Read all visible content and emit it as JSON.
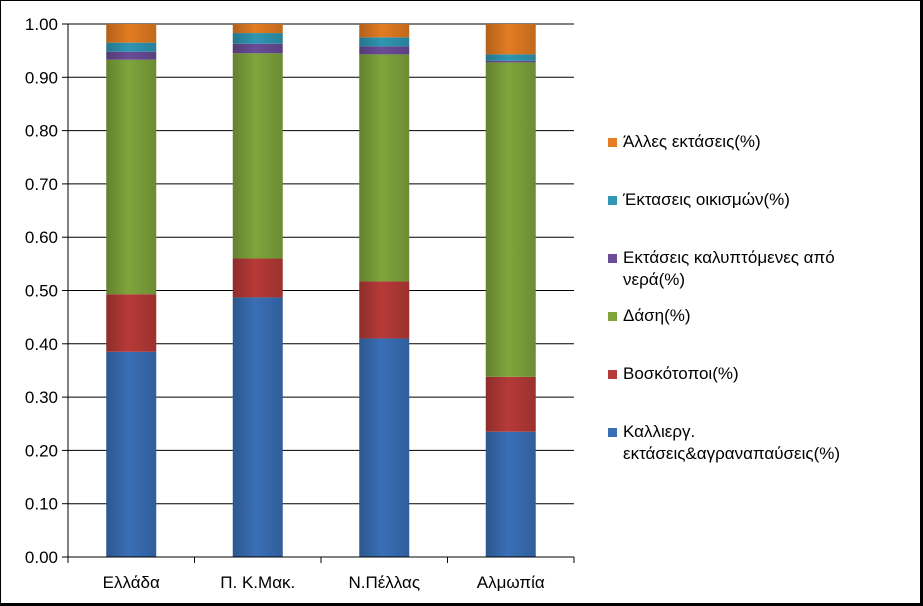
{
  "chart_data": {
    "type": "bar",
    "stacked": true,
    "categories": [
      "Ελλάδα",
      "Π. Κ.Μακ.",
      "Ν.Πέλλας",
      "Αλμωπία"
    ],
    "series": [
      {
        "name": "Καλλιεργ. εκτάσεις&αγραναπαύσεις(%)",
        "legend_lines": [
          "Καλλιεργ.",
          "εκτάσεις&αγραναπαύσεις(%)"
        ],
        "color": "#3A6FB6",
        "values": [
          0.385,
          0.487,
          0.41,
          0.235
        ]
      },
      {
        "name": "Βοσκότοποι(%)",
        "legend_lines": [
          "Βοσκότοποι(%)"
        ],
        "color": "#B63A37",
        "values": [
          0.108,
          0.073,
          0.107,
          0.103
        ]
      },
      {
        "name": "Δάση(%)",
        "legend_lines": [
          "Δάση(%)"
        ],
        "color": "#7FA53C",
        "values": [
          0.44,
          0.385,
          0.426,
          0.59
        ]
      },
      {
        "name": "Εκτάσεις καλυπτόμενες από νερά(%)",
        "legend_lines": [
          "Εκτάσεις καλυπτόμενες από",
          "νερά(%)"
        ],
        "color": "#6A4C97",
        "values": [
          0.015,
          0.018,
          0.015,
          0.003
        ]
      },
      {
        "name": "Έκτασεις οικισμών(%)",
        "legend_lines": [
          "Έκτασεις οικισμών(%)"
        ],
        "color": "#2F96B3",
        "values": [
          0.017,
          0.02,
          0.017,
          0.012
        ]
      },
      {
        "name": "Άλλες εκτάσεις(%)",
        "legend_lines": [
          "Άλλες εκτάσεις(%)"
        ],
        "color": "#E37C22",
        "values": [
          0.035,
          0.017,
          0.025,
          0.057
        ]
      }
    ],
    "ylim": [
      0,
      1
    ],
    "yticks": [
      "0.00",
      "0.10",
      "0.20",
      "0.30",
      "0.40",
      "0.50",
      "0.60",
      "0.70",
      "0.80",
      "0.90",
      "1.00"
    ],
    "grid": true,
    "legend_position": "right",
    "title": "",
    "xlabel": "",
    "ylabel": ""
  }
}
